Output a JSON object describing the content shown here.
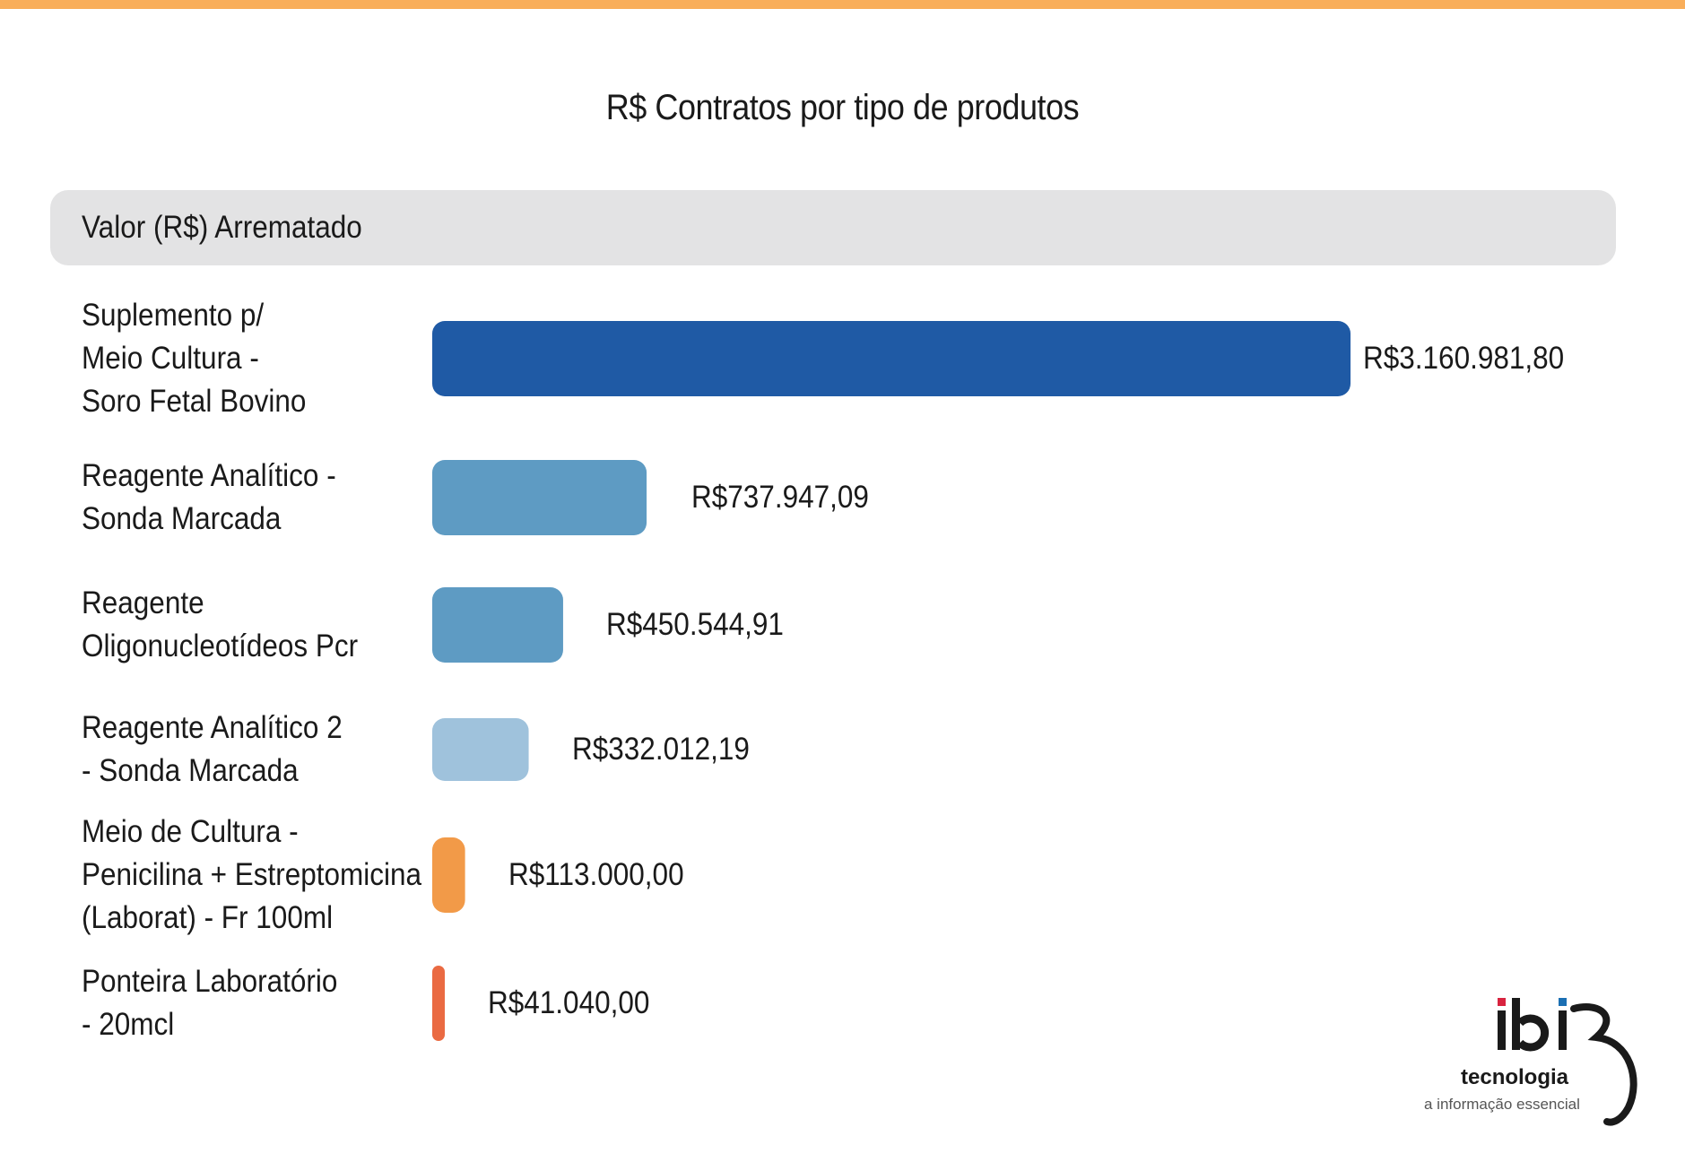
{
  "chart_data": {
    "type": "bar",
    "orientation": "horizontal",
    "title": "R$ Contratos por tipo de produtos",
    "header": "Valor (R$) Arrematado",
    "categories": [
      [
        "Suplemento p/",
        "Meio Cultura -",
        "Soro Fetal Bovino"
      ],
      [
        "Reagente Analítico -",
        "Sonda Marcada"
      ],
      [
        "Reagente",
        "Oligonucleotídeos Pcr"
      ],
      [
        "Reagente Analítico 2",
        "- Sonda Marcada"
      ],
      [
        "Meio de Cultura -",
        "Penicilina + Estreptomicina",
        "(Laborat) - Fr 100ml"
      ],
      [
        "Ponteira Laboratório",
        "- 20mcl"
      ]
    ],
    "values": [
      3160981.8,
      737947.09,
      450544.91,
      332012.19,
      113000.0,
      41040.0
    ],
    "value_labels": [
      "R$3.160.981,80",
      "R$737.947,09",
      "R$450.544,91",
      "R$332.012,19",
      "R$113.000,00",
      "R$41.040,00"
    ],
    "colors": [
      "#1f5aa5",
      "#5e9bc3",
      "#5e9bc3",
      "#9fc2dc",
      "#f29a48",
      "#ea6a42"
    ],
    "xlim": [
      0,
      3160981.8
    ],
    "grid": false,
    "legend": "none"
  },
  "top_bar_color": "#f9ae5a",
  "logo": {
    "brand": "ibiR",
    "line2": "tecnologia",
    "tagline": "a informação essencial"
  }
}
